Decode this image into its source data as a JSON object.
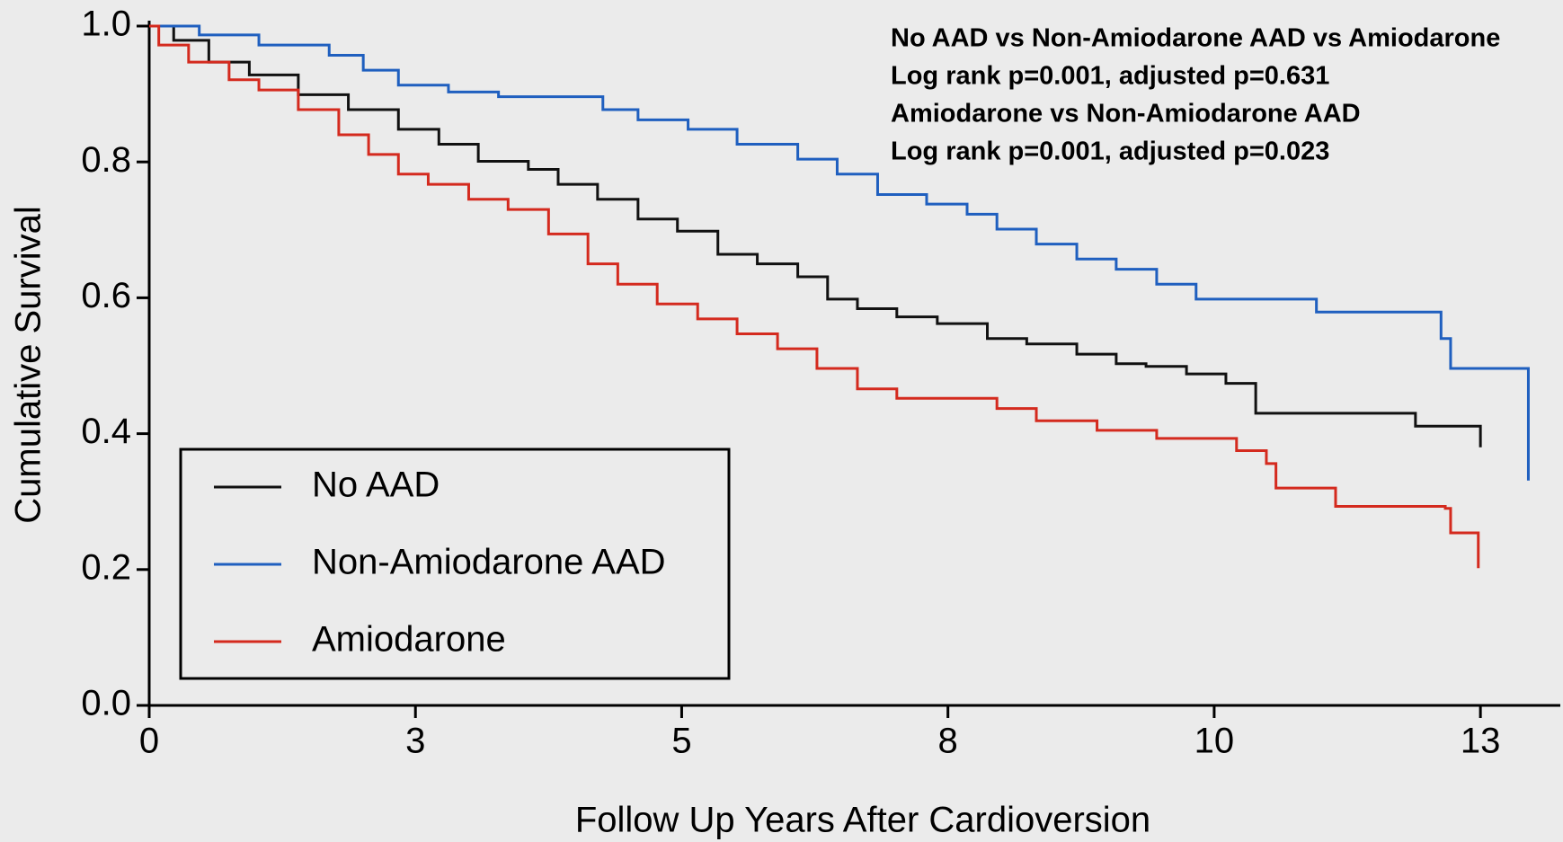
{
  "chart_data": {
    "type": "step",
    "x_label": "Follow Up Years After Cardioversion",
    "y_label": "Cumulative Survival",
    "annotations": [
      "No AAD vs Non-Amiodarone AAD vs Amiodarone",
      "Log rank p=0.001, adjusted p=0.631",
      "Amiodarone vs Non-Amiodarone AAD",
      "Log rank p=0.001, adjusted p=0.023"
    ],
    "xlim": [
      0,
      13.25
    ],
    "ylim": [
      0,
      1
    ],
    "xticks": [
      0,
      {
        "value": 2.5,
        "label": "3"
      },
      5,
      {
        "value": 7.5,
        "label": "8"
      },
      10,
      {
        "value": 12.5,
        "label": "13"
      }
    ],
    "yticks": [
      {
        "value": 0,
        "label": "0.0"
      },
      0.2,
      0.4,
      0.6,
      0.8,
      {
        "value": 1,
        "label": "1.0"
      }
    ],
    "legend_position": "lower left",
    "series": [
      {
        "name": "No AAD",
        "color": "#111111",
        "x": [
          0,
          0.23,
          0.56,
          0.94,
          1.4,
          1.87,
          2.34,
          2.72,
          3.09,
          3.56,
          3.84,
          4.21,
          4.59,
          4.96,
          5.34,
          5.71,
          6.09,
          6.37,
          6.65,
          7.02,
          7.4,
          7.87,
          8.24,
          8.71,
          9.08,
          9.36,
          9.74,
          10.11,
          10.39,
          11.89,
          12.5
        ],
        "values": [
          1.0,
          0.979,
          0.947,
          0.928,
          0.899,
          0.877,
          0.848,
          0.826,
          0.801,
          0.789,
          0.767,
          0.745,
          0.716,
          0.698,
          0.664,
          0.65,
          0.631,
          0.598,
          0.584,
          0.572,
          0.562,
          0.54,
          0.532,
          0.517,
          0.503,
          0.499,
          0.488,
          0.474,
          0.43,
          0.411,
          0.38
        ]
      },
      {
        "name": "Non-Amiodarone AAD",
        "color": "#1f5fbf",
        "x": [
          0,
          0.47,
          1.03,
          1.69,
          2.01,
          2.34,
          2.81,
          3.28,
          4.26,
          4.59,
          5.06,
          5.52,
          6.09,
          6.46,
          6.84,
          7.3,
          7.68,
          7.96,
          8.33,
          8.71,
          9.08,
          9.46,
          9.83,
          10.96,
          12.13,
          12.22,
          12.95
        ],
        "values": [
          1.0,
          0.987,
          0.972,
          0.957,
          0.935,
          0.913,
          0.903,
          0.896,
          0.877,
          0.862,
          0.848,
          0.826,
          0.804,
          0.782,
          0.752,
          0.738,
          0.723,
          0.701,
          0.679,
          0.657,
          0.642,
          0.62,
          0.598,
          0.579,
          0.54,
          0.496,
          0.331
        ]
      },
      {
        "name": "Amiodarone",
        "color": "#d42a1e",
        "x": [
          0,
          0.09,
          0.37,
          0.75,
          1.03,
          1.4,
          1.78,
          2.06,
          2.34,
          2.62,
          3.0,
          3.37,
          3.75,
          4.12,
          4.4,
          4.77,
          5.15,
          5.52,
          5.9,
          6.27,
          6.65,
          7.02,
          7.96,
          8.33,
          8.9,
          9.46,
          10.21,
          10.49,
          10.58,
          11.14,
          12.17,
          12.22,
          12.48
        ],
        "values": [
          1.0,
          0.972,
          0.947,
          0.921,
          0.906,
          0.877,
          0.84,
          0.811,
          0.782,
          0.767,
          0.745,
          0.73,
          0.694,
          0.65,
          0.62,
          0.591,
          0.569,
          0.547,
          0.525,
          0.496,
          0.466,
          0.452,
          0.437,
          0.419,
          0.405,
          0.393,
          0.375,
          0.356,
          0.32,
          0.293,
          0.29,
          0.254,
          0.202
        ]
      }
    ]
  }
}
